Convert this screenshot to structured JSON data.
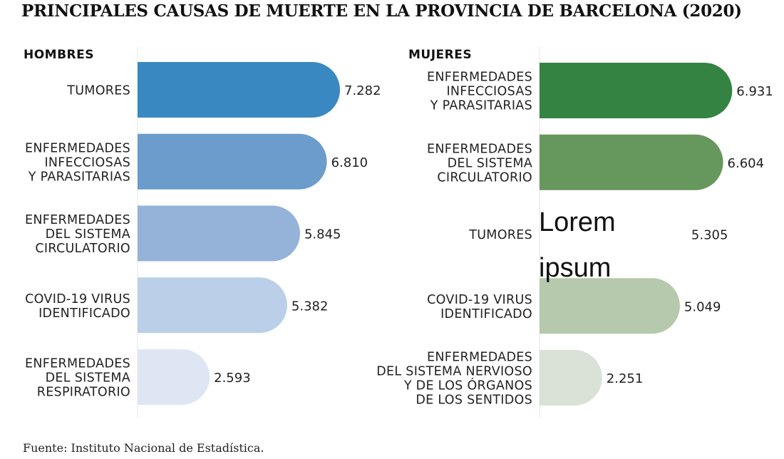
{
  "title": "PRINCIPALES CAUSAS DE MUERTE EN LA PROVINCIA DE BARCELONA (2020)",
  "source": "Fuente: Instituto Nacional de Estadística.",
  "overlay": {
    "line1": "Lorem",
    "line2": "ipsum"
  },
  "chart_data": [
    {
      "type": "bar",
      "panel_title": "HOMBRES",
      "orientation": "horizontal",
      "categories": [
        "TUMORES",
        "ENFERMEDADES INFECCIOSAS Y PARASITARIAS",
        "ENFERMEDADES DEL SISTEMA CIRCULATORIO",
        "COVID-19 VIRUS IDENTIFICADO",
        "ENFERMEDADES DEL SISTEMA RESPIRATORIO"
      ],
      "category_lines": [
        [
          "TUMORES"
        ],
        [
          "ENFERMEDADES",
          "INFECCIOSAS",
          "Y PARASITARIAS"
        ],
        [
          "ENFERMEDADES",
          "DEL SISTEMA",
          "CIRCULATORIO"
        ],
        [
          "COVID-19 VIRUS",
          "IDENTIFICADO"
        ],
        [
          "ENFERMEDADES",
          "DEL SISTEMA",
          "RESPIRATORIO"
        ]
      ],
      "values": [
        7282,
        6810,
        5845,
        5382,
        2593
      ],
      "value_labels": [
        "7.282",
        "6.810",
        "5.845",
        "5.382",
        "2.593"
      ],
      "colors": [
        "#3a88c2",
        "#6b9ccc",
        "#95b3d9",
        "#bccfe8",
        "#dfe6f3"
      ],
      "hidden_bars": []
    },
    {
      "type": "bar",
      "panel_title": "MUJERES",
      "orientation": "horizontal",
      "categories": [
        "ENFERMEDADES INFECCIOSAS Y PARASITARIAS",
        "ENFERMEDADES DEL SISTEMA CIRCULATORIO",
        "TUMORES",
        "COVID-19 VIRUS IDENTIFICADO",
        "ENFERMEDADES DEL SISTEMA NERVIOSO Y DE LOS ÓRGANOS DE LOS SENTIDOS"
      ],
      "category_lines": [
        [
          "ENFERMEDADES",
          "INFECCIOSAS",
          "Y PARASITARIAS"
        ],
        [
          "ENFERMEDADES",
          "DEL SISTEMA",
          "CIRCULATORIO"
        ],
        [
          "TUMORES"
        ],
        [
          "COVID-19 VIRUS",
          "IDENTIFICADO"
        ],
        [
          "ENFERMEDADES",
          "DEL SISTEMA NERVIOSO",
          "Y DE LOS ÓRGANOS",
          "DE LOS SENTIDOS"
        ]
      ],
      "values": [
        6931,
        6604,
        5305,
        5049,
        2251
      ],
      "value_labels": [
        "6.931",
        "6.604",
        "5.305",
        "5.049",
        "2.251"
      ],
      "colors": [
        "#348342",
        "#66975d",
        "#ffffff",
        "#b7c9ac",
        "#dae1d6"
      ],
      "hidden_bars": [
        2
      ]
    }
  ]
}
